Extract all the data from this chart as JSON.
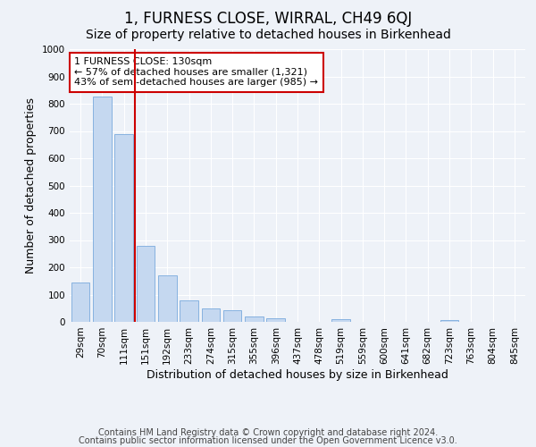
{
  "title": "1, FURNESS CLOSE, WIRRAL, CH49 6QJ",
  "subtitle": "Size of property relative to detached houses in Birkenhead",
  "xlabel": "Distribution of detached houses by size in Birkenhead",
  "ylabel": "Number of detached properties",
  "categories": [
    "29sqm",
    "70sqm",
    "111sqm",
    "151sqm",
    "192sqm",
    "233sqm",
    "274sqm",
    "315sqm",
    "355sqm",
    "396sqm",
    "437sqm",
    "478sqm",
    "519sqm",
    "559sqm",
    "600sqm",
    "641sqm",
    "682sqm",
    "723sqm",
    "763sqm",
    "804sqm",
    "845sqm"
  ],
  "values": [
    145,
    825,
    690,
    280,
    172,
    78,
    50,
    43,
    20,
    12,
    0,
    0,
    11,
    0,
    0,
    0,
    0,
    8,
    0,
    0,
    0
  ],
  "bar_color": "#c5d8f0",
  "bar_edge_color": "#7aaadd",
  "red_line_index": 2.5,
  "red_line_color": "#cc0000",
  "annotation_text": "1 FURNESS CLOSE: 130sqm\n← 57% of detached houses are smaller (1,321)\n43% of semi-detached houses are larger (985) →",
  "annotation_box_color": "#ffffff",
  "annotation_box_edge": "#cc0000",
  "ylim": [
    0,
    1000
  ],
  "yticks": [
    0,
    100,
    200,
    300,
    400,
    500,
    600,
    700,
    800,
    900,
    1000
  ],
  "footer1": "Contains HM Land Registry data © Crown copyright and database right 2024.",
  "footer2": "Contains public sector information licensed under the Open Government Licence v3.0.",
  "background_color": "#eef2f8",
  "plot_bg_color": "#eef2f8",
  "title_fontsize": 12,
  "subtitle_fontsize": 10,
  "label_fontsize": 9,
  "tick_fontsize": 7.5,
  "footer_fontsize": 7,
  "annotation_fontsize": 8
}
